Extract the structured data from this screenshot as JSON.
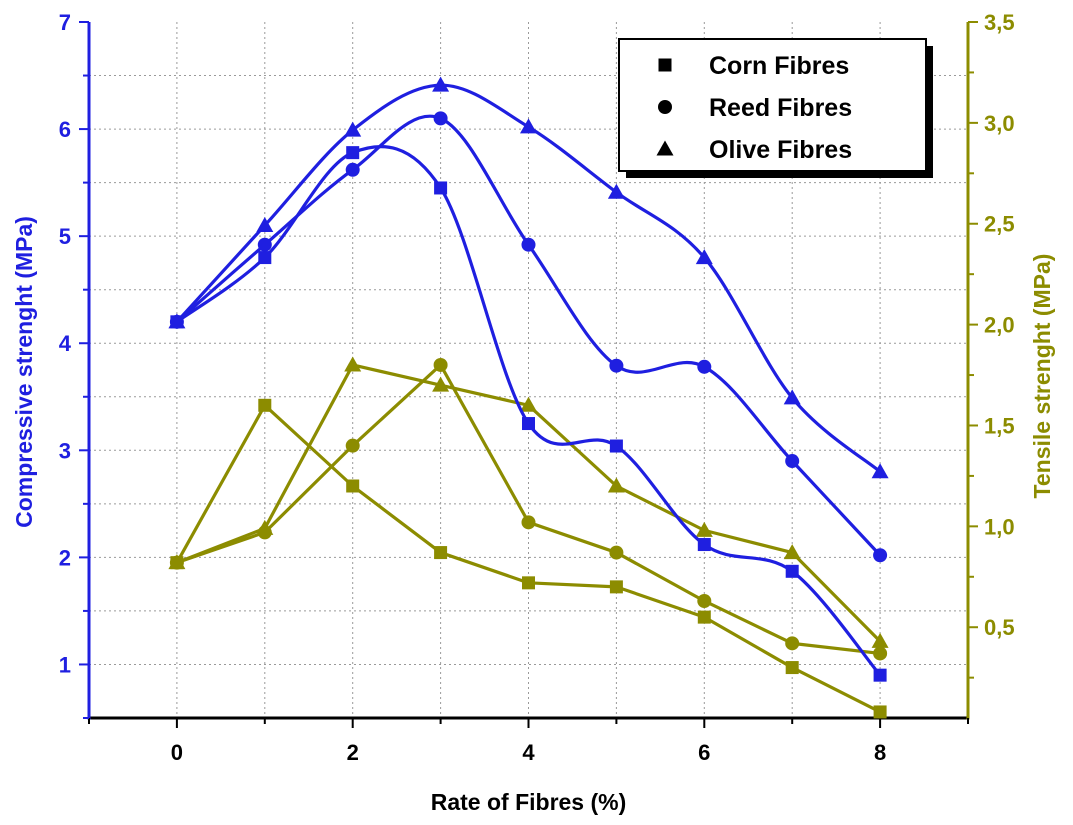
{
  "chart_data": {
    "type": "line",
    "xlabel": "Rate of Fibres (%)",
    "ylabel_left": "Compressive strenght (MPa)",
    "ylabel_right": "Tensile strenght (MPa)",
    "xlim": [
      -1,
      9
    ],
    "ylim_left": [
      0.5,
      7
    ],
    "ylim_right": [
      0.05,
      3.5
    ],
    "x_ticks": [
      "0",
      "2",
      "4",
      "6",
      "8"
    ],
    "y_left_ticks": [
      "1",
      "2",
      "3",
      "4",
      "5",
      "6",
      "7"
    ],
    "y_right_ticks": [
      "0,5",
      "1,0",
      "1,5",
      "2,0",
      "2,5",
      "3,0",
      "3,5"
    ],
    "grid": true,
    "legend_position": "top-right",
    "legend": [
      {
        "label": "Corn Fibres",
        "marker": "square"
      },
      {
        "label": "Reed Fibres",
        "marker": "circle"
      },
      {
        "label": "Olive Fibres",
        "marker": "triangle"
      }
    ],
    "colors": {
      "compressive": "#1f1fe0",
      "tensile": "#8c8c00"
    },
    "x": [
      0,
      1,
      2,
      3,
      4,
      5,
      6,
      7,
      8
    ],
    "series": [
      {
        "label": "Corn Fibres",
        "axis": "left",
        "measure": "compressive",
        "marker": "square",
        "curve": "smooth",
        "values": [
          4.2,
          4.8,
          5.78,
          5.45,
          3.25,
          3.04,
          2.12,
          1.87,
          0.9
        ]
      },
      {
        "label": "Reed Fibres",
        "axis": "left",
        "measure": "compressive",
        "marker": "circle",
        "curve": "smooth",
        "values": [
          4.2,
          4.92,
          5.62,
          6.1,
          4.92,
          3.79,
          3.78,
          2.9,
          2.02
        ]
      },
      {
        "label": "Olive Fibres",
        "axis": "left",
        "measure": "compressive",
        "marker": "triangle",
        "curve": "smooth",
        "values": [
          4.2,
          5.1,
          5.99,
          6.41,
          6.02,
          5.41,
          4.8,
          3.49,
          2.8
        ]
      },
      {
        "label": "Corn Fibres",
        "axis": "right",
        "measure": "tensile",
        "marker": "square",
        "curve": "straight",
        "values": [
          0.82,
          1.6,
          1.2,
          0.87,
          0.72,
          0.7,
          0.55,
          0.3,
          0.08
        ]
      },
      {
        "label": "Reed Fibres",
        "axis": "right",
        "measure": "tensile",
        "marker": "circle",
        "curve": "straight",
        "values": [
          0.82,
          0.97,
          1.4,
          1.8,
          1.02,
          0.87,
          0.63,
          0.42,
          0.37
        ]
      },
      {
        "label": "Olive Fibres",
        "axis": "right",
        "measure": "tensile",
        "marker": "triangle",
        "curve": "straight",
        "values": [
          0.82,
          0.99,
          1.8,
          1.7,
          1.6,
          1.2,
          0.98,
          0.87,
          0.43
        ]
      }
    ]
  }
}
